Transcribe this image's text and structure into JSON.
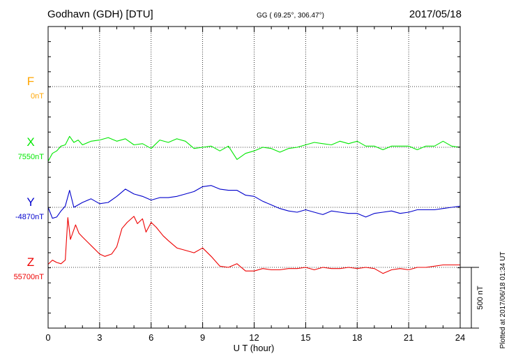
{
  "header": {
    "station": "Godhavn (GDH)  [DTU]",
    "coords": "GG ( 69.25°, 306.47°)",
    "date": "2017/05/18"
  },
  "footer": {
    "plotted": "Plotted at 2017/06/18 01:34  UT"
  },
  "chart_data": {
    "type": "line",
    "title": "Godhavn (GDH)  [DTU]",
    "xlabel": "U T (hour)",
    "ylabel": "",
    "xlim": [
      0,
      24
    ],
    "xticks": [
      "0",
      "3",
      "6",
      "9",
      "12",
      "15",
      "18",
      "21",
      "24"
    ],
    "grid": true,
    "scale_bar": {
      "label": "500 nT",
      "value_nT": 500
    },
    "panel_range_nT": 500,
    "series": [
      {
        "name": "F",
        "baseline_label": "0nT",
        "color": "#ffa500",
        "x": [],
        "y": []
      },
      {
        "name": "X",
        "baseline_label": "7550nT",
        "color": "#00e800",
        "x": [
          0,
          0.25,
          0.5,
          0.75,
          1,
          1.25,
          1.5,
          1.75,
          2,
          2.5,
          3,
          3.5,
          4,
          4.5,
          5,
          5.5,
          6,
          6.5,
          7,
          7.5,
          8,
          8.5,
          9,
          9.5,
          10,
          10.5,
          11,
          11.5,
          12,
          12.5,
          13,
          13.5,
          14,
          14.5,
          15,
          15.5,
          16,
          16.5,
          17,
          17.5,
          18,
          18.5,
          19,
          19.5,
          20,
          20.5,
          21,
          21.5,
          22,
          22.5,
          23,
          23.5,
          24
        ],
        "y": [
          7435,
          7500,
          7520,
          7560,
          7570,
          7640,
          7590,
          7610,
          7570,
          7600,
          7610,
          7630,
          7600,
          7620,
          7570,
          7580,
          7540,
          7610,
          7590,
          7620,
          7600,
          7540,
          7550,
          7560,
          7520,
          7560,
          7450,
          7500,
          7520,
          7550,
          7540,
          7510,
          7540,
          7550,
          7570,
          7590,
          7580,
          7570,
          7600,
          7580,
          7600,
          7560,
          7560,
          7530,
          7560,
          7560,
          7560,
          7530,
          7560,
          7560,
          7600,
          7560,
          7550
        ]
      },
      {
        "name": "Y",
        "baseline_label": "-4870nT",
        "color": "#0000cc",
        "x": [
          0,
          0.25,
          0.5,
          0.75,
          1,
          1.25,
          1.5,
          1.75,
          2,
          2.5,
          3,
          3.5,
          4,
          4.5,
          5,
          5.5,
          6,
          6.5,
          7,
          7.5,
          8,
          8.5,
          9,
          9.5,
          10,
          10.5,
          11,
          11.5,
          12,
          12.5,
          13,
          13.5,
          14,
          14.5,
          15,
          15.5,
          16,
          16.5,
          17,
          17.5,
          18,
          18.5,
          19,
          19.5,
          20,
          20.5,
          21,
          21.5,
          22,
          22.5,
          23,
          23.5,
          24
        ],
        "y": [
          -4870,
          -4960,
          -4950,
          -4900,
          -4860,
          -4730,
          -4870,
          -4850,
          -4830,
          -4800,
          -4840,
          -4830,
          -4780,
          -4720,
          -4760,
          -4780,
          -4810,
          -4790,
          -4790,
          -4780,
          -4760,
          -4740,
          -4700,
          -4690,
          -4720,
          -4730,
          -4730,
          -4770,
          -4780,
          -4820,
          -4850,
          -4880,
          -4900,
          -4910,
          -4890,
          -4910,
          -4930,
          -4900,
          -4910,
          -4920,
          -4920,
          -4950,
          -4920,
          -4910,
          -4900,
          -4920,
          -4910,
          -4890,
          -4890,
          -4890,
          -4880,
          -4870,
          -4860
        ]
      },
      {
        "name": "Z",
        "baseline_label": "55700nT",
        "color": "#ee0000",
        "x": [
          0,
          0.25,
          0.5,
          0.75,
          1,
          1.15,
          1.3,
          1.6,
          1.8,
          2,
          2.5,
          3,
          3.3,
          3.7,
          4,
          4.3,
          4.6,
          5,
          5.2,
          5.5,
          5.7,
          6,
          6.3,
          6.7,
          7,
          7.5,
          8,
          8.5,
          9,
          9.5,
          10,
          10.5,
          11,
          11.5,
          12,
          12.5,
          13,
          13.5,
          14,
          14.5,
          15,
          15.5,
          16,
          16.5,
          17,
          17.5,
          18,
          18.5,
          19,
          19.5,
          20,
          20.5,
          21,
          21.5,
          22,
          22.5,
          23,
          23.5,
          24
        ],
        "y": [
          55725,
          55760,
          55740,
          55730,
          55760,
          56110,
          55930,
          56050,
          55980,
          55950,
          55880,
          55810,
          55790,
          55810,
          55870,
          56020,
          56070,
          56120,
          56060,
          56100,
          55990,
          56070,
          56030,
          55960,
          55920,
          55860,
          55840,
          55820,
          55860,
          55790,
          55710,
          55700,
          55730,
          55670,
          55670,
          55690,
          55680,
          55680,
          55690,
          55690,
          55700,
          55680,
          55700,
          55690,
          55690,
          55700,
          55690,
          55700,
          55690,
          55650,
          55680,
          55690,
          55680,
          55700,
          55700,
          55710,
          55720,
          55720,
          55720
        ]
      }
    ]
  }
}
